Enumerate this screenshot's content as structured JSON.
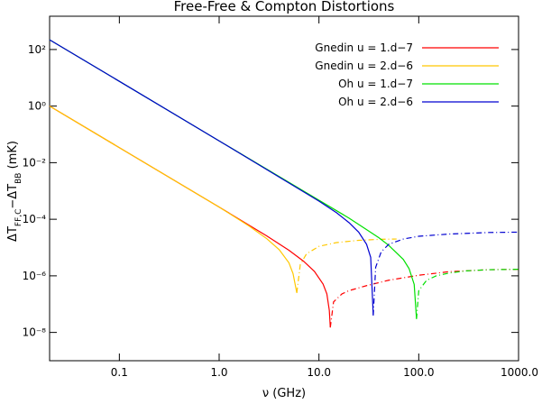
{
  "chart_data": {
    "type": "line",
    "title": "Free-Free & Compton Distortions",
    "x_label": "ν (GHz)",
    "y_label": [
      "ΔT",
      "FF,C",
      "−ΔT",
      "BB",
      " (mK)"
    ],
    "log_x": true,
    "log_y": true,
    "legend": "top-right",
    "xlim": [
      0.02,
      1000
    ],
    "xticks": [
      0.1,
      {
        "value": 1,
        "label": "1.0"
      },
      {
        "value": 10,
        "label": "10.0"
      },
      {
        "value": 100,
        "label": "100.0"
      },
      {
        "value": 1000,
        "label": "1000.0"
      }
    ],
    "ylim": [
      1e-09,
      1500
    ],
    "yticks": [
      {
        "value": 1e-08,
        "label": "10⁻⁸"
      },
      {
        "value": 1e-06,
        "label": "10⁻⁶"
      },
      {
        "value": 0.0001,
        "label": "10⁻⁴"
      },
      {
        "value": 0.01,
        "label": "10⁻²"
      },
      {
        "value": 1,
        "label": "10⁰"
      },
      {
        "value": 100,
        "label": "10²"
      }
    ],
    "series": [
      {
        "name": "Gnedin u = 1.d−7",
        "color": "#ff0000",
        "solid": {
          "x": [
            0.02,
            0.1,
            1,
            3,
            5,
            7,
            9,
            11,
            12,
            12.7,
            13
          ],
          "values": [
            1,
            0.034,
            0.00027,
            2.57e-05,
            8e-06,
            3.3e-06,
            1.44e-06,
            5.1e-07,
            2.3e-07,
            6e-08,
            1.5e-08
          ]
        },
        "dashed": {
          "x": [
            13,
            14,
            17,
            20,
            30,
            50,
            100,
            200,
            500,
            1000
          ],
          "values": [
            1.5e-08,
            1.2e-07,
            2.3e-07,
            3e-07,
            4.5e-07,
            7e-07,
            1.05e-06,
            1.4e-06,
            1.65e-06,
            1.7e-06
          ]
        }
      },
      {
        "name": "Gnedin u = 2.d−6",
        "color": "#ffc800",
        "solid": {
          "x": [
            0.02,
            0.1,
            1,
            2,
            3,
            4,
            5,
            5.5,
            6
          ],
          "values": [
            1,
            0.034,
            0.00027,
            5.7e-05,
            2.06e-05,
            8.4e-06,
            2.9e-06,
            1.2e-06,
            2.5e-07
          ]
        },
        "dashed": {
          "x": [
            6,
            6.5,
            7.5,
            10,
            15,
            25,
            40,
            60
          ],
          "values": [
            2.5e-07,
            2.5e-06,
            6e-06,
            1.1e-05,
            1.5e-05,
            1.8e-05,
            1.95e-05,
            2e-05
          ]
        }
      },
      {
        "name": "Oh u = 1.d−7",
        "color": "#00e000",
        "solid": {
          "x": [
            0.02,
            0.1,
            1,
            10,
            20,
            30,
            40,
            50,
            70,
            80,
            90,
            95
          ],
          "values": [
            220,
            7.5,
            0.059,
            0.00047,
            0.00011,
            4.3e-05,
            2.2e-05,
            1.2e-05,
            3.8e-06,
            1.8e-06,
            5e-07,
            3e-08
          ]
        },
        "dashed": {
          "x": [
            95,
            100,
            120,
            150,
            200,
            300,
            500,
            1000
          ],
          "values": [
            3e-08,
            3e-07,
            7e-07,
            1e-06,
            1.25e-06,
            1.5e-06,
            1.65e-06,
            1.7e-06
          ]
        }
      },
      {
        "name": "Oh u = 2.d−6",
        "color": "#0000d0",
        "solid": {
          "x": [
            0.02,
            0.1,
            1,
            10,
            15,
            20,
            25,
            30,
            33,
            35
          ],
          "values": [
            220,
            7.5,
            0.059,
            0.00044,
            0.00017,
            7.6e-05,
            3.5e-05,
            1.3e-05,
            4.5e-06,
            4e-08
          ]
        },
        "dashed": {
          "x": [
            35,
            37,
            42,
            50,
            70,
            100,
            200,
            500,
            1000
          ],
          "values": [
            4e-08,
            2e-06,
            7e-06,
            1.3e-05,
            2e-05,
            2.5e-05,
            3e-05,
            3.4e-05,
            3.5e-05
          ]
        }
      }
    ]
  }
}
